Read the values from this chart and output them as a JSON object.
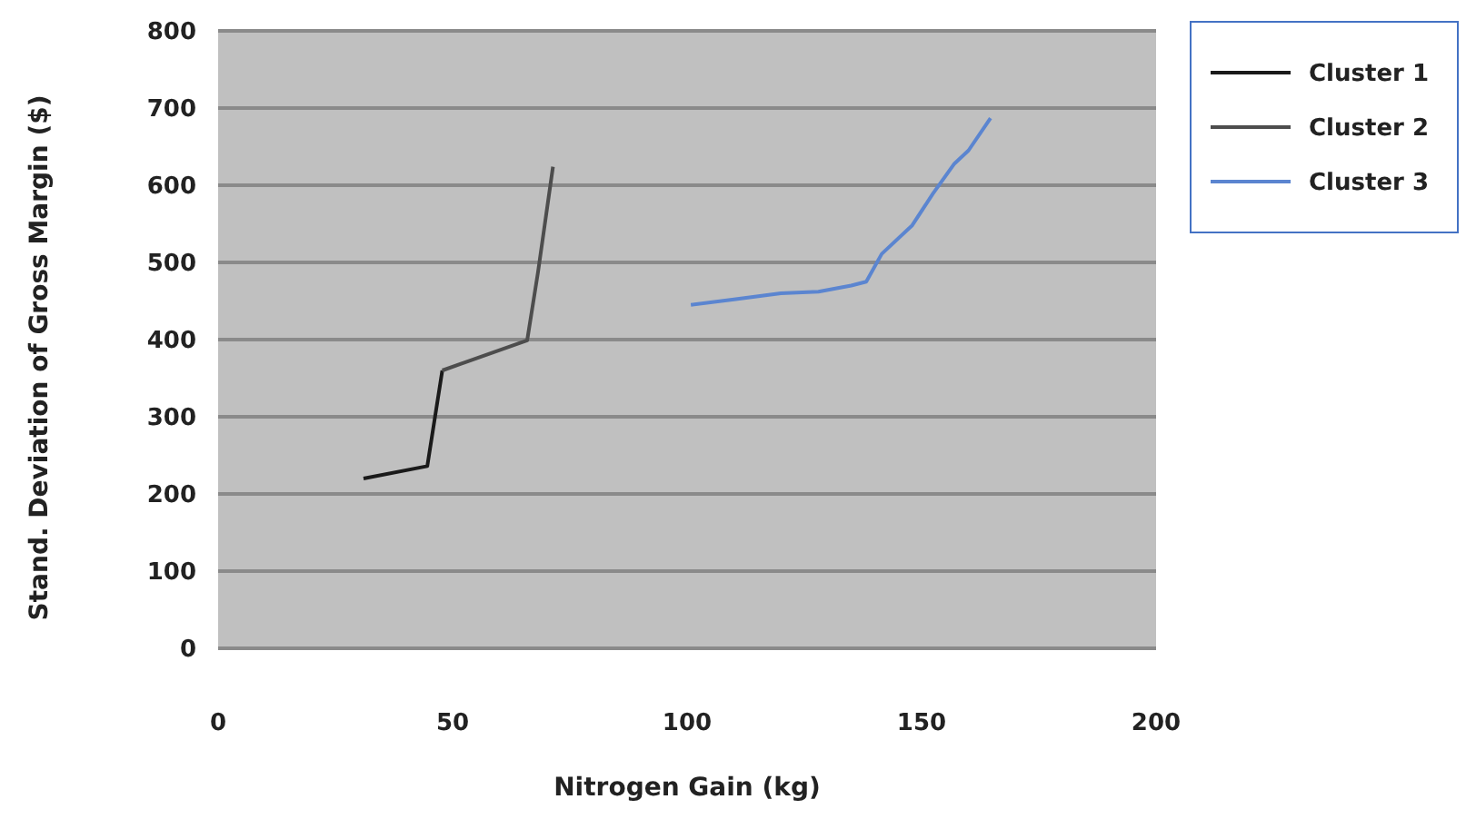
{
  "chart_data": {
    "type": "line",
    "xlabel": "Nitrogen Gain (kg)",
    "ylabel": "Stand. Deviation of Gross Margin ($)",
    "xlim": [
      0,
      200
    ],
    "xticks": [
      0,
      50,
      100,
      150,
      200
    ],
    "ylim": [
      0,
      800
    ],
    "yticks": [
      0,
      100,
      200,
      300,
      400,
      500,
      600,
      700,
      800
    ],
    "grid": "y",
    "legend": "top right",
    "marker": "none",
    "line_style": "solid",
    "series": [
      {
        "name": "Cluster 1",
        "color": "#1a1a1a",
        "x": [
          31,
          44.6,
          47.8
        ],
        "values": [
          220,
          236,
          360
        ]
      },
      {
        "name": "Cluster 2",
        "color": "#4d4d4d",
        "x": [
          47.8,
          65.9,
          68.2,
          71.4
        ],
        "values": [
          360,
          399,
          487,
          624
        ]
      },
      {
        "name": "Cluster 3",
        "color": "#5b85d0",
        "x": [
          100.8,
          110,
          120,
          128,
          135,
          138.2,
          141.5,
          148,
          152.4,
          157,
          160,
          164.7
        ],
        "values": [
          445,
          452,
          460,
          462,
          470,
          475,
          511,
          548,
          589,
          628,
          645,
          687
        ]
      }
    ]
  }
}
